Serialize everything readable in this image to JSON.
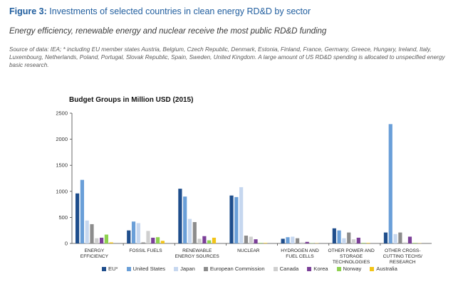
{
  "figure": {
    "number_label": "Figure 3:",
    "title": "Investments of selected countries in clean energy RD&D by sector",
    "subtitle": "Energy efficiency, renewable energy and nuclear receive the most public RD&D funding",
    "source": "Source of data: IEA; * including EU member states Austria, Belgium, Czech Republic, Denmark, Estonia, Finland, France, Germany, Greece, Hungary, Ireland, Italy, Luxembourg, Netherlands, Poland, Portugal, Slovak Republic, Spain, Sweden, United Kingdom. A large amount of US RD&D spending is allocated to unspecified energy basic research."
  },
  "chart_data": {
    "type": "bar",
    "title": "Budget Groups in Million USD (2015)",
    "xlabel": "",
    "ylabel": "",
    "ylim": [
      0,
      2500
    ],
    "yticks": [
      0,
      500,
      1000,
      1500,
      2000,
      2500
    ],
    "ytick_labels": [
      "0",
      "500",
      "1000",
      "1500",
      "2000",
      "2500"
    ],
    "grid": false,
    "legend_position": "bottom",
    "categories": [
      [
        "ENERGY",
        "EFFICIENCY"
      ],
      [
        "FOSSIL FUELS"
      ],
      [
        "RENEWABLE",
        "ENERGY SOURCES"
      ],
      [
        "NUCLEAR"
      ],
      [
        "HYDROGEN AND",
        "FUEL CELLS"
      ],
      [
        "OTHER POWER AND",
        "STORAGE",
        "TECHNOLOGIES"
      ],
      [
        "OTHER CROSS-",
        "CUTTING TECHS/",
        "RESEARCH"
      ]
    ],
    "series": [
      {
        "name": "EU*",
        "color": "#1f4e8c",
        "values": [
          960,
          250,
          1050,
          920,
          90,
          290,
          210
        ]
      },
      {
        "name": "United States",
        "color": "#6a9fd8",
        "values": [
          1220,
          420,
          900,
          890,
          120,
          250,
          2290
        ]
      },
      {
        "name": "Japan",
        "color": "#c6d7ef",
        "values": [
          440,
          390,
          470,
          1080,
          130,
          100,
          180
        ]
      },
      {
        "name": "European Commission",
        "color": "#8c8c8c",
        "values": [
          370,
          20,
          410,
          150,
          100,
          210,
          210
        ]
      },
      {
        "name": "Canada",
        "color": "#cfcfcf",
        "values": [
          100,
          240,
          90,
          130,
          20,
          80,
          20
        ]
      },
      {
        "name": "Korea",
        "color": "#7b3f98",
        "values": [
          110,
          110,
          140,
          80,
          30,
          110,
          130
        ]
      },
      {
        "name": "Norway",
        "color": "#8fd14f",
        "values": [
          170,
          120,
          60,
          10,
          5,
          10,
          10
        ]
      },
      {
        "name": "Australia",
        "color": "#f2c418",
        "values": [
          20,
          50,
          110,
          10,
          5,
          10,
          5
        ]
      }
    ]
  }
}
